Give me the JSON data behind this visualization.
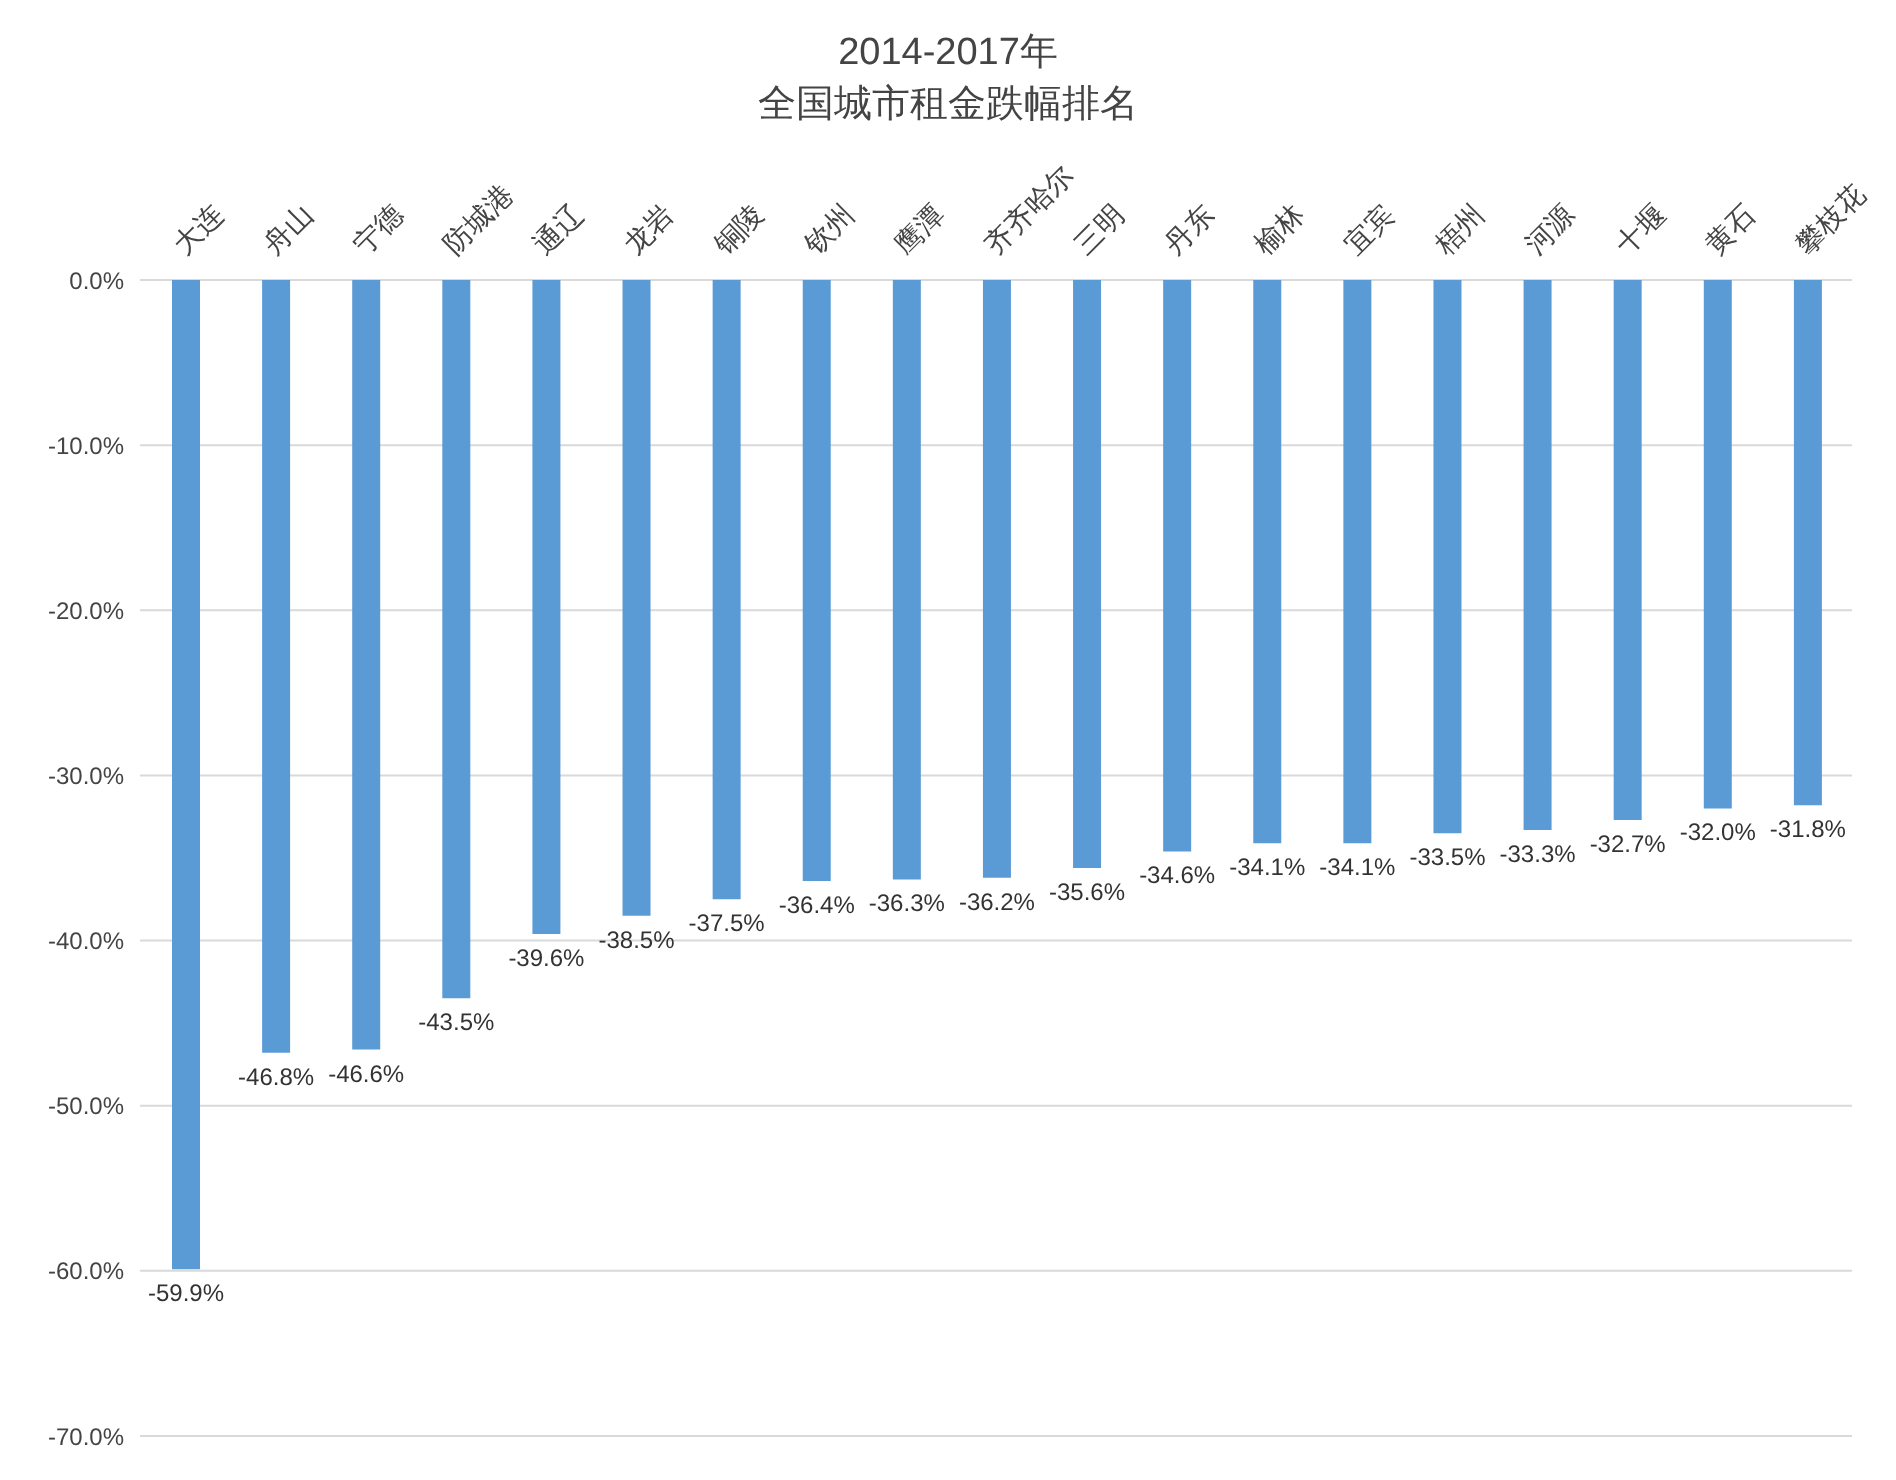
{
  "chart_data": {
    "type": "bar",
    "title": "2014-2017年",
    "subtitle": "全国城市租金跌幅排名",
    "categories": [
      "大连",
      "舟山",
      "宁德",
      "防城港",
      "通辽",
      "龙岩",
      "铜陵",
      "钦州",
      "鹰潭",
      "齐齐哈尔",
      "三明",
      "丹东",
      "榆林",
      "宜宾",
      "梧州",
      "河源",
      "十堰",
      "黄石",
      "攀枝花"
    ],
    "values": [
      -59.9,
      -46.8,
      -46.6,
      -43.5,
      -39.6,
      -38.5,
      -37.5,
      -36.4,
      -36.3,
      -36.2,
      -35.6,
      -34.6,
      -34.1,
      -34.1,
      -33.5,
      -33.3,
      -32.7,
      -32.0,
      -31.8
    ],
    "value_labels": [
      "-59.9%",
      "-46.8%",
      "-46.6%",
      "-43.5%",
      "-39.6%",
      "-38.5%",
      "-37.5%",
      "-36.4%",
      "-36.3%",
      "-36.2%",
      "-35.6%",
      "-34.6%",
      "-34.1%",
      "-34.1%",
      "-33.5%",
      "-33.3%",
      "-32.7%",
      "-32.0%",
      "-31.8%"
    ],
    "color": "#5b9bd5",
    "ylim": [
      -70,
      0
    ],
    "yticks": [
      {
        "value": 0,
        "label": "0.0%"
      },
      {
        "value": -10,
        "label": "-10.0%"
      },
      {
        "value": -20,
        "label": "-20.0%"
      },
      {
        "value": -30,
        "label": "-30.0%"
      },
      {
        "value": -40,
        "label": "-40.0%"
      },
      {
        "value": -50,
        "label": "-50.0%"
      },
      {
        "value": -60,
        "label": "-60.0%"
      },
      {
        "value": -70,
        "label": "-70.0%"
      }
    ],
    "grid": "y"
  }
}
